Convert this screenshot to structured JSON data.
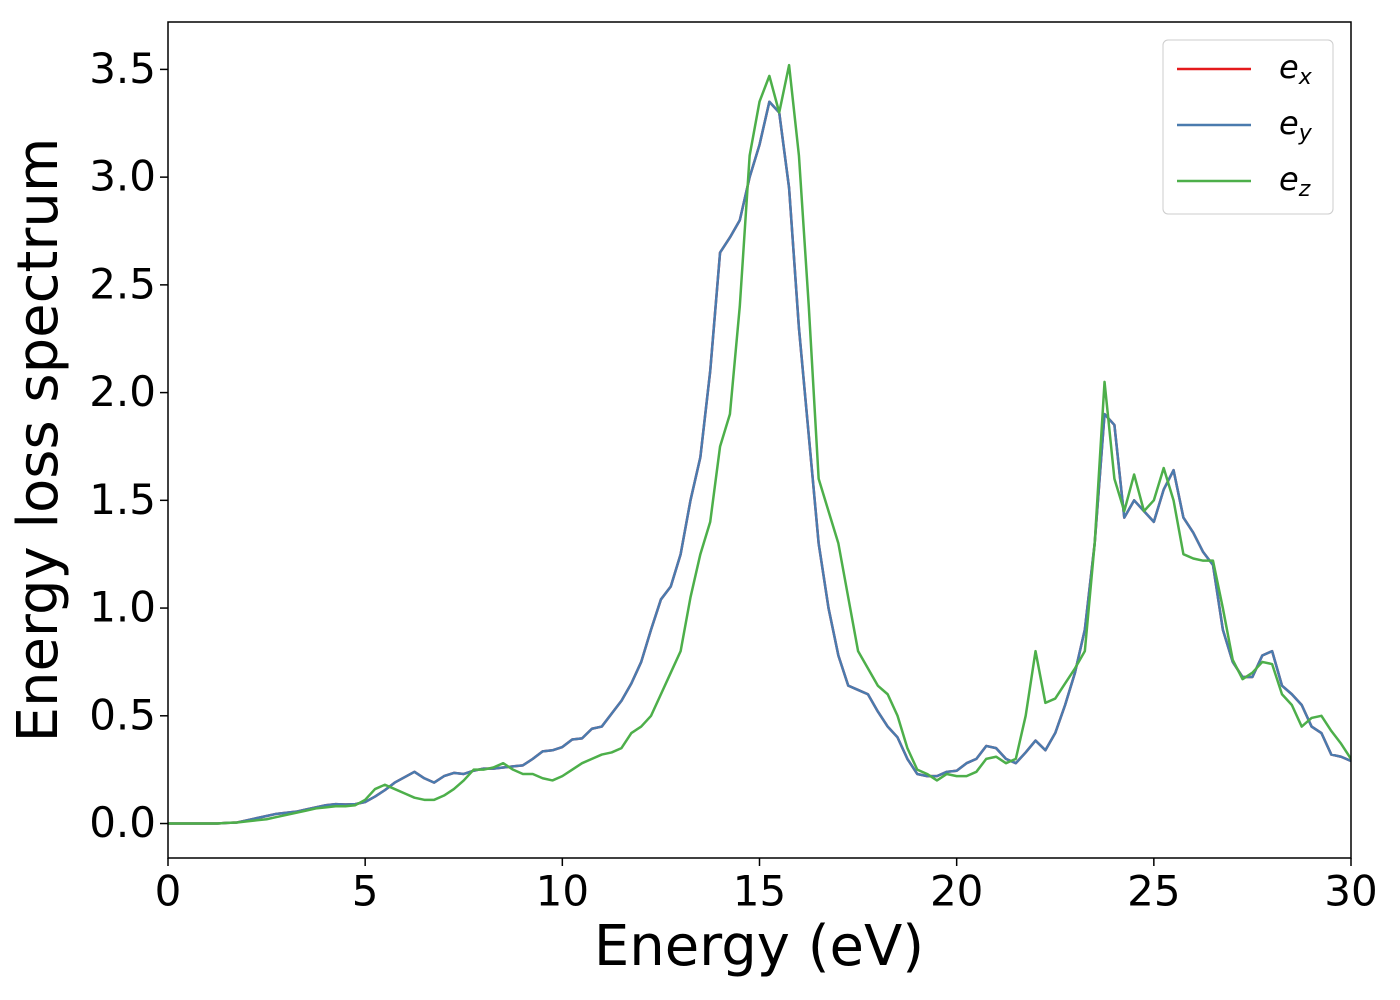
{
  "chart_data": {
    "type": "line",
    "xlabel": "Energy (eV)",
    "ylabel": "Energy loss spectrum",
    "x": [
      0,
      0.25,
      0.5,
      0.75,
      1,
      1.25,
      1.5,
      1.75,
      2,
      2.25,
      2.5,
      2.75,
      3,
      3.25,
      3.5,
      3.75,
      4,
      4.25,
      4.5,
      4.75,
      5,
      5.25,
      5.5,
      5.75,
      6,
      6.25,
      6.5,
      6.75,
      7,
      7.25,
      7.5,
      7.75,
      8,
      8.25,
      8.5,
      8.75,
      9,
      9.25,
      9.5,
      9.75,
      10,
      10.25,
      10.5,
      10.75,
      11,
      11.25,
      11.5,
      11.75,
      12,
      12.25,
      12.5,
      12.75,
      13,
      13.25,
      13.5,
      13.75,
      14,
      14.25,
      14.5,
      14.75,
      15,
      15.25,
      15.5,
      15.75,
      16,
      16.25,
      16.5,
      16.75,
      17,
      17.25,
      17.5,
      17.75,
      18,
      18.25,
      18.5,
      18.75,
      19,
      19.25,
      19.5,
      19.75,
      20,
      20.25,
      20.5,
      20.75,
      21,
      21.25,
      21.5,
      21.75,
      22,
      22.25,
      22.5,
      22.75,
      23,
      23.25,
      23.5,
      23.75,
      24,
      24.25,
      24.5,
      24.75,
      25,
      25.25,
      25.5,
      25.75,
      26,
      26.25,
      26.5,
      26.75,
      27,
      27.25,
      27.5,
      27.75,
      28,
      28.25,
      28.5,
      28.75,
      29,
      29.25,
      29.5,
      29.75,
      30
    ],
    "series": [
      {
        "name": "ex",
        "color": "#e41a1c",
        "values": [
          0,
          0,
          0,
          0,
          0,
          0,
          0.003,
          0.005,
          0.015,
          0.025,
          0.035,
          0.045,
          0.05,
          0.055,
          0.065,
          0.075,
          0.085,
          0.09,
          0.088,
          0.09,
          0.1,
          0.125,
          0.155,
          0.19,
          0.215,
          0.24,
          0.21,
          0.19,
          0.22,
          0.235,
          0.23,
          0.245,
          0.255,
          0.255,
          0.26,
          0.265,
          0.27,
          0.3,
          0.335,
          0.34,
          0.355,
          0.39,
          0.395,
          0.44,
          0.45,
          0.51,
          0.57,
          0.65,
          0.75,
          0.9,
          1.04,
          1.1,
          1.25,
          1.5,
          1.7,
          2.1,
          2.65,
          2.72,
          2.8,
          3.0,
          3.15,
          3.35,
          3.3,
          2.95,
          2.3,
          1.8,
          1.3,
          1.0,
          0.78,
          0.64,
          0.62,
          0.6,
          0.52,
          0.45,
          0.4,
          0.3,
          0.23,
          0.22,
          0.22,
          0.24,
          0.245,
          0.28,
          0.3,
          0.36,
          0.35,
          0.3,
          0.28,
          0.33,
          0.385,
          0.34,
          0.42,
          0.55,
          0.7,
          0.9,
          1.3,
          1.9,
          1.85,
          1.42,
          1.5,
          1.45,
          1.4,
          1.55,
          1.64,
          1.42,
          1.35,
          1.26,
          1.2,
          0.9,
          0.75,
          0.68,
          0.68,
          0.78,
          0.8,
          0.64,
          0.6,
          0.55,
          0.45,
          0.42,
          0.32,
          0.31,
          0.29
        ]
      },
      {
        "name": "ey",
        "color": "#4a7bae",
        "values": [
          0,
          0,
          0,
          0,
          0,
          0,
          0.003,
          0.005,
          0.015,
          0.025,
          0.035,
          0.045,
          0.05,
          0.055,
          0.065,
          0.075,
          0.085,
          0.09,
          0.088,
          0.09,
          0.1,
          0.125,
          0.155,
          0.19,
          0.215,
          0.24,
          0.21,
          0.19,
          0.22,
          0.235,
          0.23,
          0.245,
          0.255,
          0.255,
          0.26,
          0.265,
          0.27,
          0.3,
          0.335,
          0.34,
          0.355,
          0.39,
          0.395,
          0.44,
          0.45,
          0.51,
          0.57,
          0.65,
          0.75,
          0.9,
          1.04,
          1.1,
          1.25,
          1.5,
          1.7,
          2.1,
          2.65,
          2.72,
          2.8,
          3.0,
          3.15,
          3.35,
          3.3,
          2.95,
          2.3,
          1.8,
          1.3,
          1.0,
          0.78,
          0.64,
          0.62,
          0.6,
          0.52,
          0.45,
          0.4,
          0.3,
          0.23,
          0.22,
          0.22,
          0.24,
          0.245,
          0.28,
          0.3,
          0.36,
          0.35,
          0.3,
          0.28,
          0.33,
          0.385,
          0.34,
          0.42,
          0.55,
          0.7,
          0.9,
          1.3,
          1.9,
          1.85,
          1.42,
          1.5,
          1.45,
          1.4,
          1.55,
          1.64,
          1.42,
          1.35,
          1.26,
          1.2,
          0.9,
          0.75,
          0.68,
          0.68,
          0.78,
          0.8,
          0.64,
          0.6,
          0.55,
          0.45,
          0.42,
          0.32,
          0.31,
          0.29
        ]
      },
      {
        "name": "ez",
        "color": "#4daf4a",
        "values": [
          0,
          0,
          0,
          0,
          0,
          0,
          0.003,
          0.005,
          0.01,
          0.015,
          0.02,
          0.03,
          0.04,
          0.05,
          0.06,
          0.07,
          0.075,
          0.08,
          0.08,
          0.085,
          0.11,
          0.16,
          0.18,
          0.16,
          0.14,
          0.12,
          0.11,
          0.11,
          0.13,
          0.16,
          0.2,
          0.25,
          0.25,
          0.26,
          0.28,
          0.25,
          0.23,
          0.23,
          0.21,
          0.2,
          0.22,
          0.25,
          0.28,
          0.3,
          0.32,
          0.33,
          0.35,
          0.42,
          0.45,
          0.5,
          0.6,
          0.7,
          0.8,
          1.05,
          1.25,
          1.4,
          1.75,
          1.9,
          2.4,
          3.1,
          3.35,
          3.47,
          3.3,
          3.52,
          3.1,
          2.4,
          1.6,
          1.45,
          1.3,
          1.05,
          0.8,
          0.72,
          0.64,
          0.6,
          0.5,
          0.35,
          0.25,
          0.23,
          0.2,
          0.23,
          0.22,
          0.22,
          0.24,
          0.3,
          0.31,
          0.28,
          0.3,
          0.5,
          0.8,
          0.56,
          0.58,
          0.65,
          0.72,
          0.8,
          1.3,
          2.05,
          1.6,
          1.45,
          1.62,
          1.45,
          1.5,
          1.65,
          1.5,
          1.25,
          1.23,
          1.22,
          1.22,
          1.0,
          0.76,
          0.67,
          0.7,
          0.75,
          0.74,
          0.6,
          0.55,
          0.45,
          0.49,
          0.5,
          0.43,
          0.37,
          0.3
        ]
      }
    ],
    "xlim": [
      0,
      30
    ],
    "xticks": [
      0,
      5,
      10,
      15,
      20,
      25,
      30
    ],
    "ylim": [
      -0.16,
      3.72
    ],
    "yticks": [
      {
        "value": 0,
        "label": "0.0"
      },
      0.5,
      {
        "value": 1,
        "label": "1.0"
      },
      1.5,
      {
        "value": 2,
        "label": "2.0"
      },
      2.5,
      {
        "value": 3,
        "label": "3.0"
      },
      3.5
    ],
    "grid": false,
    "legend": "upper right"
  }
}
